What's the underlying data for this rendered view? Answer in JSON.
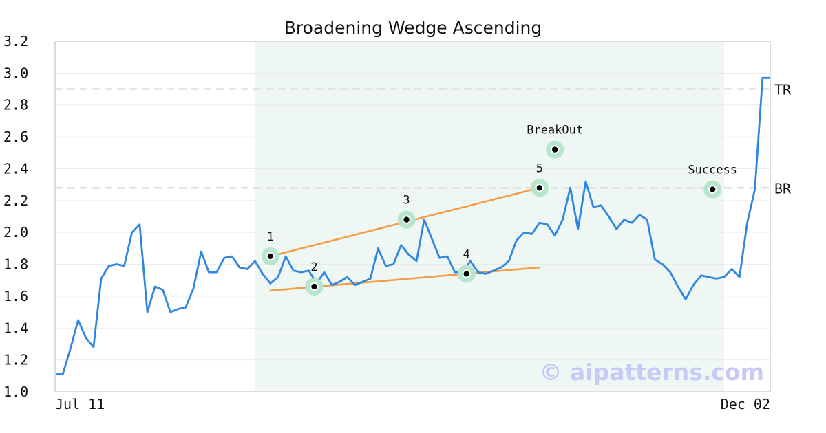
{
  "chart_data": {
    "type": "line",
    "title": "Broadening Wedge Ascending",
    "xlabel": "",
    "ylabel": "",
    "ylim": [
      1.0,
      3.2
    ],
    "yticks": [
      "1.0",
      "1.2",
      "1.4",
      "1.6",
      "1.8",
      "2.0",
      "2.2",
      "2.4",
      "2.6",
      "2.8",
      "3.0",
      "3.2"
    ],
    "xticks": [
      {
        "label": "Jul 11",
        "x": 0
      },
      {
        "label": "Dec 02",
        "x": 94
      }
    ],
    "grid": true,
    "legend": "none",
    "colors": {
      "series": "#2f86e0",
      "trendline": "#f49b45",
      "pattern_region": "#eef7f3",
      "marker_halo": "#b7e6cc",
      "marker": "#000000",
      "level_line": "#dddddd",
      "watermark": "#c9c9f8",
      "frame": "#dddddd",
      "gridline": "#ebebeb"
    },
    "pattern_region": {
      "x_start": 26,
      "x_end": 87
    },
    "series": [
      {
        "values": [
          1.11,
          1.11,
          1.27,
          1.45,
          1.34,
          1.28,
          1.71,
          1.79,
          1.8,
          1.79,
          2.0,
          2.05,
          1.5,
          1.66,
          1.64,
          1.5,
          1.52,
          1.53,
          1.65,
          1.88,
          1.75,
          1.75,
          1.84,
          1.85,
          1.78,
          1.77,
          1.82,
          1.74,
          1.68,
          1.72,
          1.85,
          1.76,
          1.75,
          1.76,
          1.68,
          1.75,
          1.67,
          1.69,
          1.72,
          1.67,
          1.69,
          1.71,
          1.9,
          1.79,
          1.8,
          1.92,
          1.86,
          1.82,
          2.08,
          1.96,
          1.84,
          1.85,
          1.75,
          1.75,
          1.82,
          1.75,
          1.74,
          1.76,
          1.78,
          1.82,
          1.95,
          2.0,
          1.99,
          2.06,
          2.05,
          1.98,
          2.08,
          2.28,
          2.02,
          2.32,
          2.16,
          2.17,
          2.1,
          2.02,
          2.08,
          2.06,
          2.11,
          2.08,
          1.83,
          1.8,
          1.75,
          1.66,
          1.58,
          1.67,
          1.73,
          1.72,
          1.71,
          1.72,
          1.77,
          1.72,
          2.06,
          2.27,
          2.97,
          2.97
        ]
      }
    ],
    "trendlines": [
      {
        "from": [
          28,
          1.85
        ],
        "to": [
          63,
          2.28
        ]
      },
      {
        "from": [
          28,
          1.635
        ],
        "to": [
          63,
          1.78
        ]
      }
    ],
    "markers": [
      {
        "label": "1",
        "x": 28,
        "y": 1.85
      },
      {
        "label": "2",
        "x": 33.7,
        "y": 1.66
      },
      {
        "label": "3",
        "x": 45.7,
        "y": 2.08
      },
      {
        "label": "4",
        "x": 53.5,
        "y": 1.74
      },
      {
        "label": "5",
        "x": 63,
        "y": 2.28
      },
      {
        "label": "BreakOut",
        "x": 65,
        "y": 2.52
      },
      {
        "label": "Success",
        "x": 85.5,
        "y": 2.27
      }
    ],
    "levels": [
      {
        "label": "TR",
        "y": 2.9
      },
      {
        "label": "BR",
        "y": 2.28
      }
    ],
    "watermark": "© aipatterns.com"
  }
}
